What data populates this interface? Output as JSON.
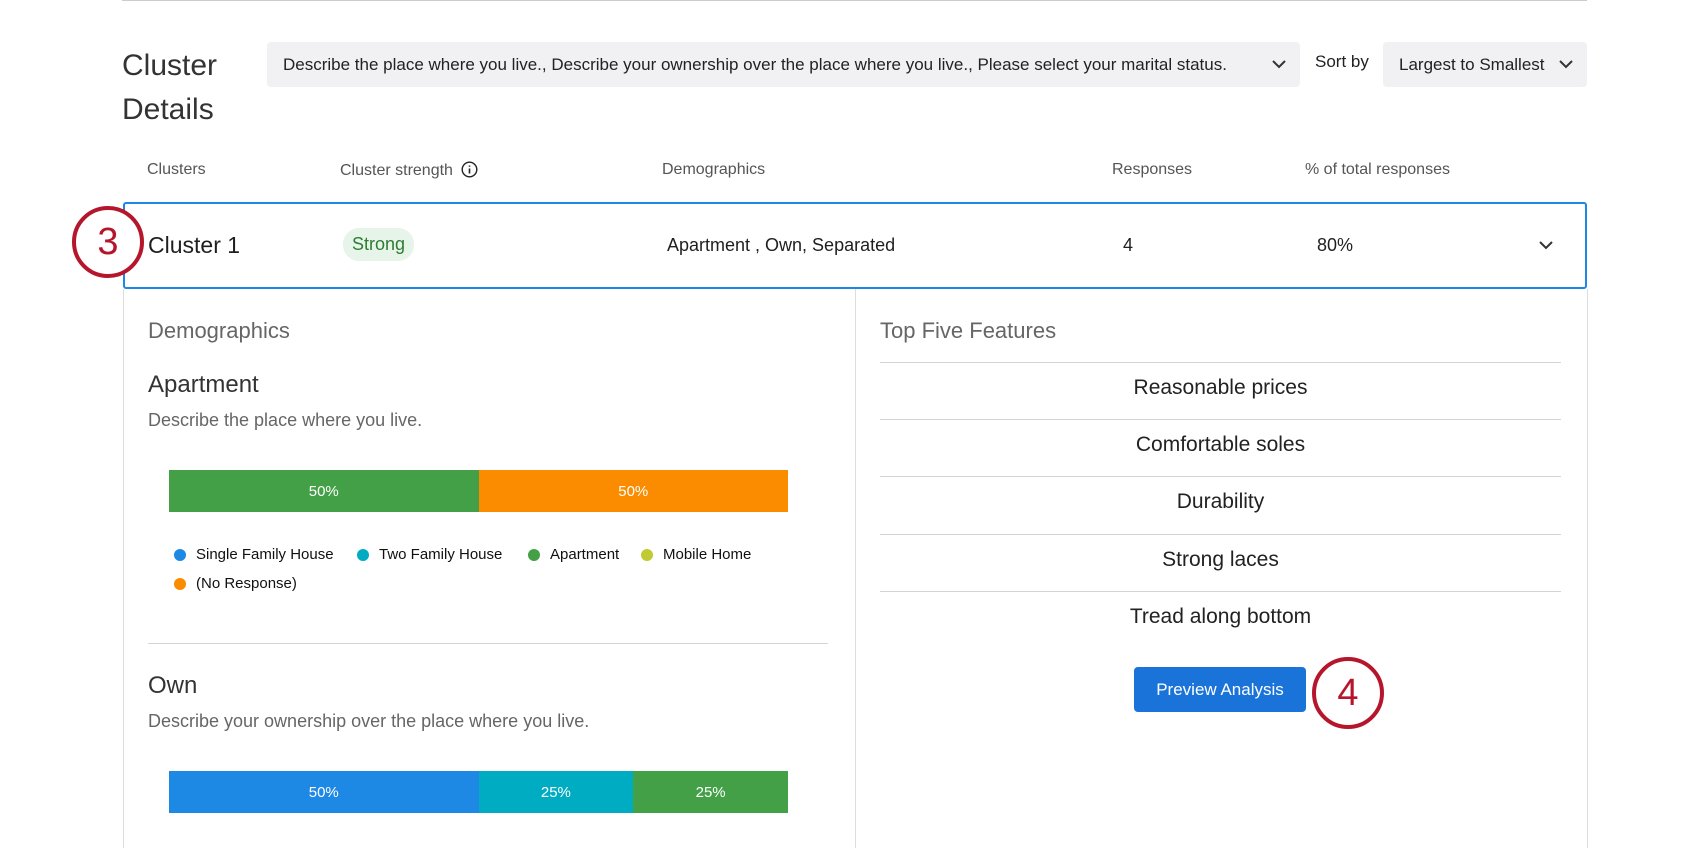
{
  "header": {
    "title": "Cluster Details",
    "questions_filter": "Describe the place where you live., Describe your ownership over the place where you live., Please select your marital status.",
    "sort_label": "Sort by",
    "sort_value": "Largest to Smallest"
  },
  "table": {
    "columns": [
      "Clusters",
      "Cluster strength",
      "Demographics",
      "Responses",
      "% of total responses"
    ],
    "rows": [
      [
        "Cluster 1",
        "Strong",
        "Apartment , Own, Separated",
        "4",
        "80%"
      ]
    ]
  },
  "demographics": {
    "title": "Demographics",
    "blocks": [
      {
        "title": "Apartment",
        "question": "Describe the place where you live.",
        "segments": [
          {
            "value": 50,
            "label": "50%",
            "color": "#43a047"
          },
          {
            "value": 50,
            "label": "50%",
            "color": "#fb8c00"
          }
        ],
        "legend": [
          {
            "label": "Single Family House",
            "color": "#1e88e5"
          },
          {
            "label": "Two Family House",
            "color": "#00acc1"
          },
          {
            "label": "Apartment",
            "color": "#43a047"
          },
          {
            "label": "Mobile Home",
            "color": "#c0ca33"
          },
          {
            "label": "(No Response)",
            "color": "#fb8c00"
          }
        ]
      },
      {
        "title": "Own",
        "question": "Describe your ownership over the place where you live.",
        "segments": [
          {
            "value": 50,
            "label": "50%",
            "color": "#1e88e5"
          },
          {
            "value": 25,
            "label": "25%",
            "color": "#00acc1"
          },
          {
            "value": 25,
            "label": "25%",
            "color": "#43a047"
          }
        ]
      }
    ]
  },
  "features": {
    "title": "Top Five Features",
    "items": [
      "Reasonable prices",
      "Comfortable soles",
      "Durability",
      "Strong laces",
      "Tread along bottom"
    ],
    "button": "Preview Analysis"
  },
  "annotations": [
    "3",
    "4"
  ]
}
